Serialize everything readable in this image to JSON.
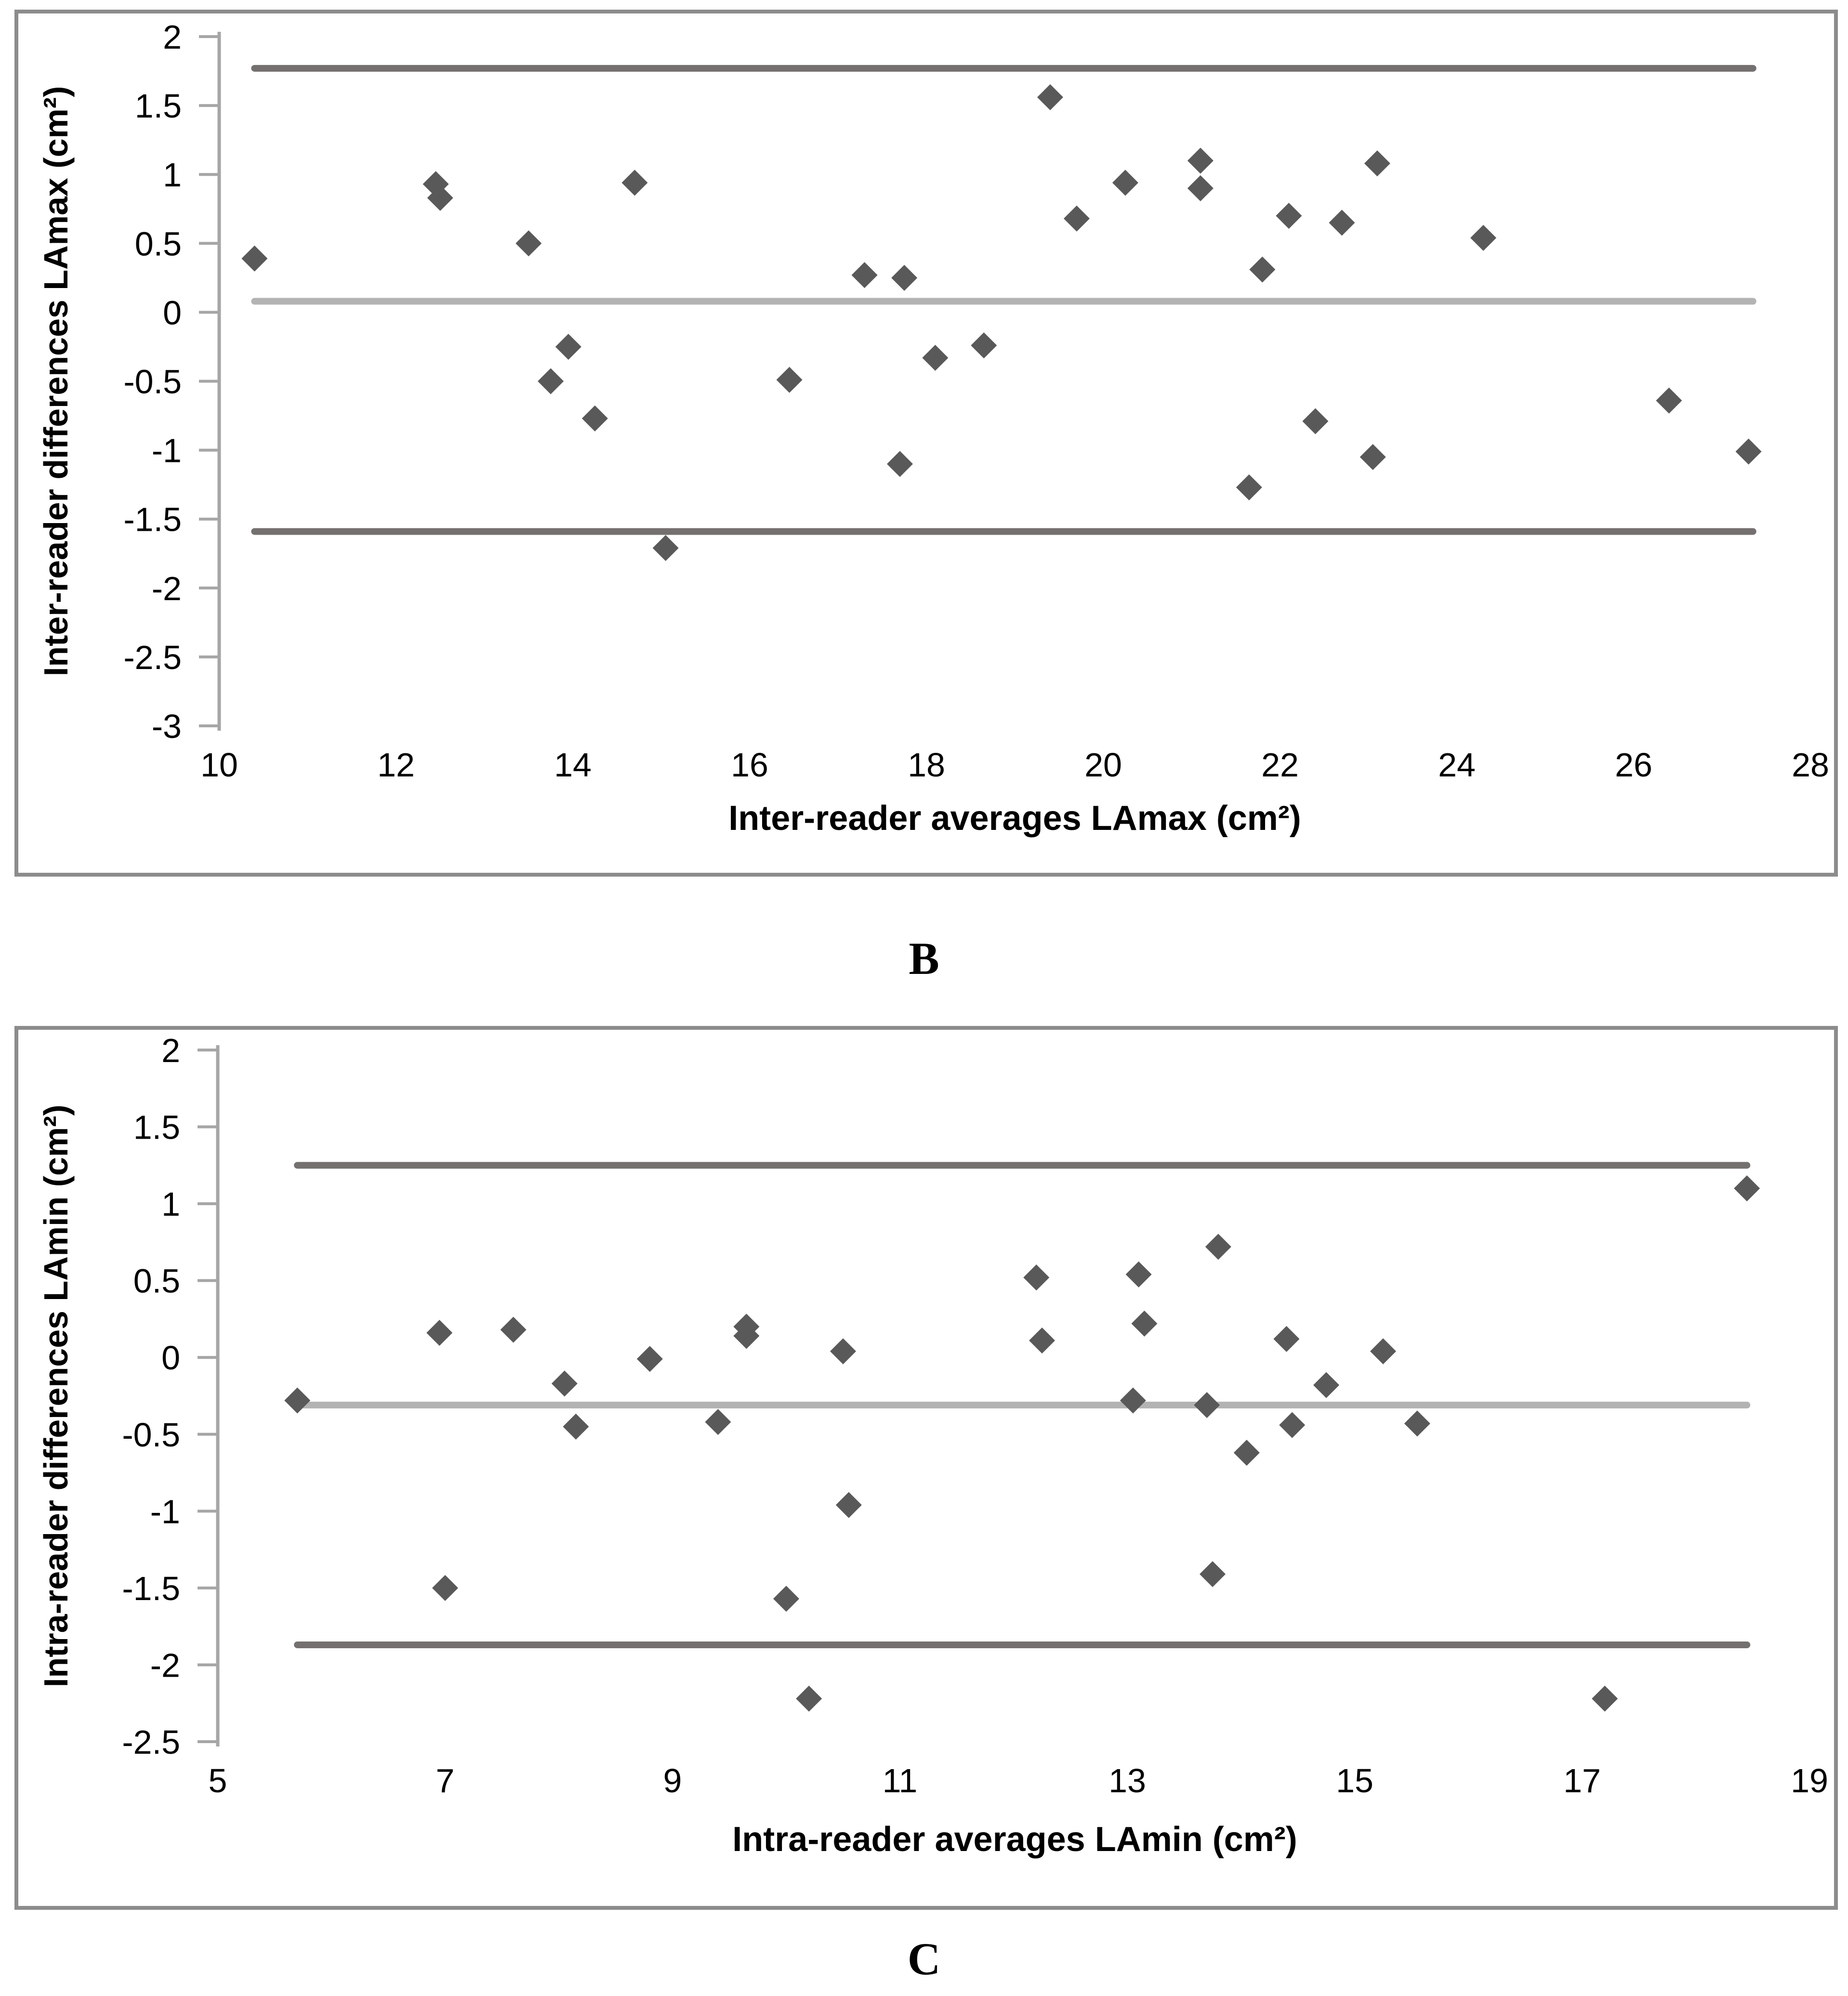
{
  "figure": {
    "background": "#ffffff",
    "panel_border_color": "#8C8C8C",
    "axis_color": "#A6A6A6",
    "text_color": "#000000"
  },
  "chart_data": [
    {
      "id": "b",
      "type": "scatter",
      "caption": "B",
      "ylabel": "Inter-reader differences LAmax (cm²)",
      "xlabel": "Inter-reader averages LAmax  (cm²)",
      "xlim": [
        10,
        28
      ],
      "ylim": [
        -3,
        2
      ],
      "x_ticks": [
        "10",
        "12",
        "14",
        "16",
        "18",
        "20",
        "22",
        "24",
        "26",
        "28"
      ],
      "y_ticks": [
        "2",
        "1.5",
        "1",
        "0.5",
        "0",
        "-0.5",
        "-1",
        "-1.5",
        "-2",
        "-2.5",
        "-3"
      ],
      "grid": false,
      "legend": null,
      "marker": {
        "shape": "diamond",
        "color": "#595959"
      },
      "points": [
        [
          10.4,
          0.39
        ],
        [
          12.45,
          0.93
        ],
        [
          12.5,
          0.83
        ],
        [
          13.5,
          0.5
        ],
        [
          13.75,
          -0.5
        ],
        [
          13.95,
          -0.25
        ],
        [
          14.25,
          -0.77
        ],
        [
          14.7,
          0.94
        ],
        [
          15.05,
          -1.71
        ],
        [
          16.45,
          -0.49
        ],
        [
          17.3,
          0.27
        ],
        [
          17.75,
          0.25
        ],
        [
          17.7,
          -1.1
        ],
        [
          18.1,
          -0.33
        ],
        [
          18.65,
          -0.24
        ],
        [
          19.4,
          1.56
        ],
        [
          19.7,
          0.68
        ],
        [
          20.25,
          0.94
        ],
        [
          21.1,
          1.1
        ],
        [
          21.1,
          0.9
        ],
        [
          21.65,
          -1.27
        ],
        [
          21.8,
          0.31
        ],
        [
          22.1,
          0.7
        ],
        [
          22.4,
          -0.79
        ],
        [
          22.7,
          0.65
        ],
        [
          23.1,
          1.08
        ],
        [
          23.05,
          -1.05
        ],
        [
          24.3,
          0.54
        ],
        [
          26.4,
          -0.64
        ],
        [
          27.3,
          -1.01
        ]
      ],
      "lines": [
        {
          "name": "upper-limit-of-agreement",
          "value": 1.77,
          "color": "#757070"
        },
        {
          "name": "mean-difference",
          "value": 0.08,
          "color": "#B3B3B3"
        },
        {
          "name": "lower-limit-of-agreement",
          "value": -1.59,
          "color": "#757070"
        }
      ],
      "line_x_range": [
        10.4,
        27.35
      ]
    },
    {
      "id": "c",
      "type": "scatter",
      "caption": "C",
      "ylabel": "Intra-reader differences LAmin (cm²)",
      "xlabel": "Intra-reader averages LAmin (cm²)",
      "xlim": [
        5,
        19
      ],
      "ylim": [
        -2.5,
        2
      ],
      "x_ticks": [
        "5",
        "7",
        "9",
        "11",
        "13",
        "15",
        "17",
        "19"
      ],
      "y_ticks": [
        "2",
        "1.5",
        "1",
        "0.5",
        "0",
        "-0.5",
        "-1",
        "-1.5",
        "-2",
        "-2.5"
      ],
      "grid": false,
      "legend": null,
      "marker": {
        "shape": "diamond",
        "color": "#595959"
      },
      "points": [
        [
          5.7,
          -0.28
        ],
        [
          6.95,
          0.16
        ],
        [
          7.0,
          -1.5
        ],
        [
          7.6,
          0.18
        ],
        [
          8.05,
          -0.17
        ],
        [
          8.15,
          -0.45
        ],
        [
          8.8,
          -0.01
        ],
        [
          9.4,
          -0.42
        ],
        [
          9.65,
          0.2
        ],
        [
          9.65,
          0.14
        ],
        [
          10.0,
          -1.57
        ],
        [
          10.2,
          -2.22
        ],
        [
          10.5,
          0.04
        ],
        [
          10.55,
          -0.96
        ],
        [
          12.2,
          0.52
        ],
        [
          12.25,
          0.11
        ],
        [
          13.1,
          0.54
        ],
        [
          13.15,
          0.22
        ],
        [
          13.05,
          -0.28
        ],
        [
          13.7,
          -0.31
        ],
        [
          13.75,
          -1.41
        ],
        [
          13.8,
          0.72
        ],
        [
          14.05,
          -0.62
        ],
        [
          14.4,
          0.12
        ],
        [
          14.45,
          -0.44
        ],
        [
          14.75,
          -0.18
        ],
        [
          15.25,
          0.04
        ],
        [
          15.55,
          -0.43
        ],
        [
          17.2,
          -2.22
        ],
        [
          18.45,
          1.1
        ]
      ],
      "lines": [
        {
          "name": "upper-limit-of-agreement",
          "value": 1.25,
          "color": "#757070"
        },
        {
          "name": "mean-difference",
          "value": -0.31,
          "color": "#B3B3B3"
        },
        {
          "name": "lower-limit-of-agreement",
          "value": -1.87,
          "color": "#757070"
        }
      ],
      "line_x_range": [
        5.7,
        18.45
      ]
    }
  ]
}
